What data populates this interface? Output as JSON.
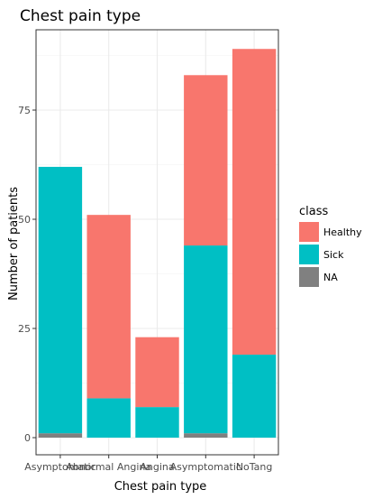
{
  "chart_data": {
    "type": "bar",
    "stacked": true,
    "title": "Chest pain type",
    "xlabel": "Chest pain type",
    "ylabel": "Number of patients",
    "categories": [
      "Asymptomatic",
      "Abnormal Angina",
      "Angina",
      "Asymptomatic",
      "NoTang"
    ],
    "series": [
      {
        "name": "Healthy",
        "color": "#F8766D",
        "values": [
          0,
          42,
          16,
          39,
          70
        ]
      },
      {
        "name": "Sick",
        "color": "#00BFC4",
        "values": [
          61,
          9,
          7,
          43,
          19
        ]
      },
      {
        "name": "NA",
        "color": "#808080",
        "values": [
          1,
          0,
          0,
          1,
          0
        ]
      }
    ],
    "stack_order_bottom_to_top": [
      "NA",
      "Sick",
      "Healthy"
    ],
    "ylim": [
      0,
      92
    ],
    "yticks": [
      0,
      25,
      50,
      75
    ],
    "grid": true,
    "legend": {
      "title": "class",
      "placement": "right",
      "entries": [
        "Healthy",
        "Sick",
        "NA"
      ]
    }
  }
}
